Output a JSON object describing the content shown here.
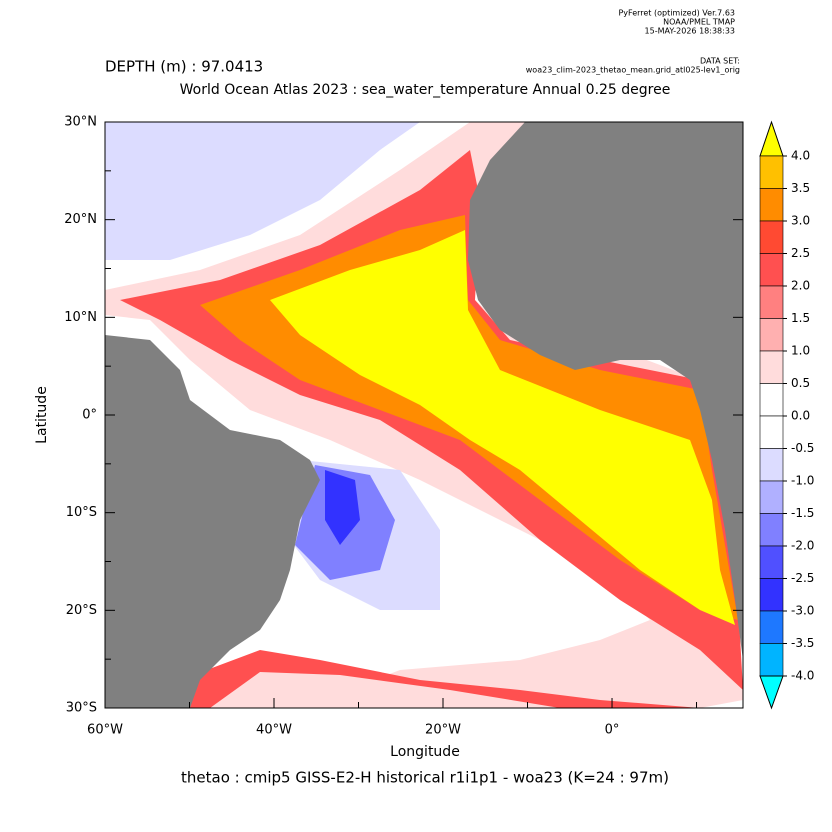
{
  "header": {
    "software": "PyFerret (optimized) Ver.7.63",
    "org": "NOAA/PMEL TMAP",
    "timestamp": "15-MAY-2026 18:38:33",
    "dataset_label": "DATA SET:",
    "dataset": "woa23_clim-2023_thetao_mean.grid_atl025-lev1_orig"
  },
  "depth": "DEPTH (m) : 97.0413",
  "title": "World Ocean Atlas 2023 : sea_water_temperature Annual  0.25 degree",
  "x_label": "Longitude",
  "y_label": "Latitude",
  "footer": "thetao : cmip5 GISS-E2-H historical r1i1p1 - woa23  (K=24 : 97m)",
  "xlim": [
    -60,
    15.5
  ],
  "xticks": [
    {
      "value": -60,
      "label": "60°W"
    },
    {
      "value": -40,
      "label": "40°W"
    },
    {
      "value": -20,
      "label": "20°W"
    },
    {
      "value": 0,
      "label": "0°"
    }
  ],
  "xminor": [
    -50,
    -30,
    -10,
    10
  ],
  "ylim": [
    -30,
    30
  ],
  "yticks": [
    {
      "value": 30,
      "label": "30°N"
    },
    {
      "value": 20,
      "label": "20°N"
    },
    {
      "value": 10,
      "label": "10°N"
    },
    {
      "value": 0,
      "label": "0°"
    },
    {
      "value": -10,
      "label": "10°S"
    },
    {
      "value": -20,
      "label": "20°S"
    },
    {
      "value": -30,
      "label": "30°S"
    }
  ],
  "yminor": [
    25,
    15,
    5,
    -5,
    -15,
    -25
  ],
  "colorbar": {
    "levels": [
      {
        "value": 4,
        "label": "4.0"
      },
      {
        "value": 3.5,
        "label": "3.5"
      },
      {
        "value": 3,
        "label": "3.0"
      },
      {
        "value": 2.5,
        "label": "2.5"
      },
      {
        "value": 2,
        "label": "2.0"
      },
      {
        "value": 1.5,
        "label": "1.5"
      },
      {
        "value": 1,
        "label": "1.0"
      },
      {
        "value": 0.5,
        "label": "0.5"
      },
      {
        "value": 0,
        "label": "0.0"
      },
      {
        "value": -0.5,
        "label": "-0.5"
      },
      {
        "value": -1,
        "label": "-1.0"
      },
      {
        "value": -1.5,
        "label": "-1.5"
      },
      {
        "value": -2,
        "label": "-2.0"
      },
      {
        "value": -2.5,
        "label": "-2.5"
      },
      {
        "value": -3,
        "label": "-3.0"
      },
      {
        "value": -3.5,
        "label": "-3.5"
      },
      {
        "value": -4,
        "label": "-4.0"
      }
    ],
    "colors": [
      "#ffff00",
      "#ffc000",
      "#ff8c00",
      "#ff4a32",
      "#ff5050",
      "#ff8080",
      "#ffb0b0",
      "#ffdcdc",
      "#ffffff",
      "#ffffff",
      "#dcdcff",
      "#b0b0ff",
      "#8080ff",
      "#5050ff",
      "#3232ff",
      "#1e78ff",
      "#00b4ff",
      "#00ffff"
    ]
  }
}
